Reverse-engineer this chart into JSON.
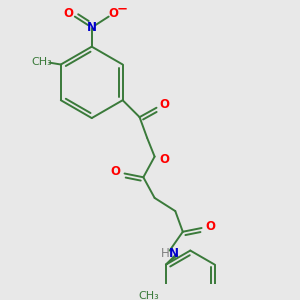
{
  "background_color": "#e8e8e8",
  "bond_color": "#3a7a3a",
  "atom_colors": {
    "O": "#ff0000",
    "N": "#0000cc",
    "H": "#808080",
    "C": "#3a7a3a"
  },
  "figsize": [
    3.0,
    3.0
  ],
  "dpi": 100
}
